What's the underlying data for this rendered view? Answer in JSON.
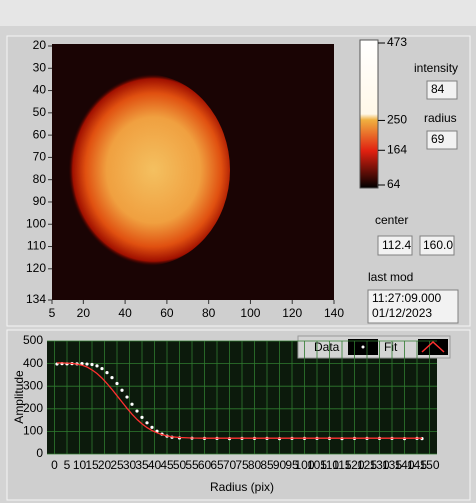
{
  "chart_data": [
    {
      "type": "image",
      "xlim": [
        5,
        140
      ],
      "xticks": [
        5,
        20,
        40,
        60,
        80,
        100,
        120,
        140
      ],
      "ylim": [
        134,
        20
      ],
      "yticks": [
        20,
        30,
        40,
        50,
        60,
        70,
        80,
        90,
        100,
        110,
        120,
        134
      ],
      "colorbar": {
        "lim": [
          64,
          473
        ],
        "ticks": [
          473,
          250,
          164,
          64
        ]
      }
    },
    {
      "type": "line",
      "y_label": "Amplitude",
      "x_label": "Radius (pix)",
      "xlim": [
        -3,
        153
      ],
      "xticks": [
        0,
        5,
        10,
        15,
        20,
        25,
        30,
        35,
        40,
        45,
        50,
        55,
        60,
        65,
        70,
        75,
        80,
        85,
        90,
        95,
        100,
        105,
        110,
        115,
        120,
        125,
        130,
        135,
        140,
        145,
        150
      ],
      "ylim": [
        0,
        500
      ],
      "yticks": [
        0,
        100,
        200,
        300,
        400,
        500
      ],
      "grid": true,
      "x": [
        1,
        3,
        5,
        7,
        9,
        11,
        13,
        15,
        17,
        19,
        21,
        23,
        25,
        27,
        29,
        31,
        33,
        35,
        37,
        39,
        41,
        43,
        45,
        47,
        50,
        55,
        60,
        65,
        70,
        75,
        80,
        85,
        90,
        95,
        100,
        105,
        110,
        115,
        120,
        125,
        130,
        135,
        140,
        145,
        147
      ],
      "series": [
        {
          "name": "Data",
          "color": "#ffffff",
          "values": [
            398,
            400,
            399,
            400,
            399,
            400,
            398,
            396,
            390,
            378,
            360,
            338,
            312,
            282,
            252,
            220,
            190,
            162,
            138,
            118,
            101,
            88,
            79,
            74,
            71,
            70,
            69,
            69,
            68,
            69,
            69,
            69,
            68,
            69,
            69,
            69,
            69,
            68,
            69,
            69,
            69,
            69,
            68,
            69,
            68
          ]
        },
        {
          "name": "Fit",
          "color": "#ff3030",
          "values": [
            403,
            403,
            402,
            401,
            398,
            393,
            385,
            372,
            356,
            336,
            312,
            286,
            258,
            230,
            202,
            176,
            153,
            133,
            117,
            104,
            94,
            86,
            80,
            76,
            73,
            71,
            70,
            70,
            70,
            70,
            70,
            70,
            70,
            70,
            70,
            70,
            70,
            70,
            70,
            70,
            70,
            70,
            70,
            70,
            70
          ]
        }
      ]
    }
  ],
  "indicators": {
    "intensity": {
      "label": "intensity",
      "value": "84"
    },
    "radius": {
      "label": "radius",
      "value": "69"
    },
    "center": {
      "label": "center",
      "values": [
        "112.4",
        "160.0"
      ]
    },
    "last_mod": {
      "label": "last mod",
      "lines": [
        "11:27:09.000",
        "01/12/2023"
      ]
    }
  }
}
